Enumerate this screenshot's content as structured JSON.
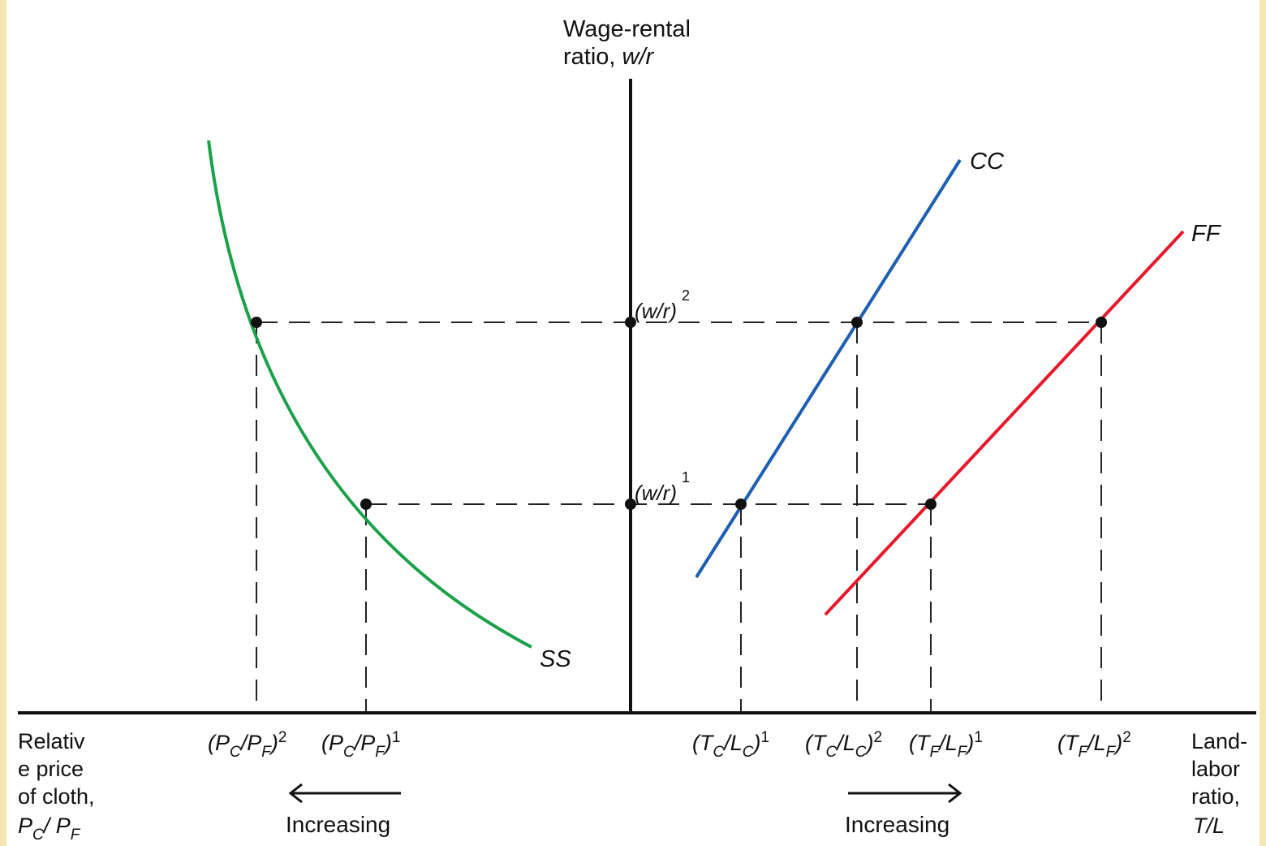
{
  "axis": {
    "y_label_line1": "Wage-rental",
    "y_label_line2_text": "ratio, ",
    "y_label_line2_var": "w/r",
    "left_label_lines": [
      "Relativ",
      "e price",
      "of cloth,"
    ],
    "left_label_var_P": "P",
    "left_label_var_C": "C",
    "left_label_slash": "/ ",
    "left_label_var_F": "F",
    "right_label_lines": [
      "Land-",
      "labor",
      "ratio,"
    ],
    "right_label_var": "T/L"
  },
  "curves": {
    "ss": {
      "label": "SS",
      "color": "#1aa14a"
    },
    "cc": {
      "label": "CC",
      "color": "#1e5fb3"
    },
    "ff": {
      "label": "FF",
      "color": "#e8192c"
    }
  },
  "wr_levels": {
    "level2": {
      "base": "(w/r)",
      "sup": "2"
    },
    "level1": {
      "base": "(w/r)",
      "sup": "1"
    }
  },
  "x_ticks_left": [
    {
      "P": "(P",
      "C": "C",
      "mid": "/P",
      "F": "F",
      "close": ")",
      "sup": "2"
    },
    {
      "P": "(P",
      "C": "C",
      "mid": "/P",
      "F": "F",
      "close": ")",
      "sup": "1"
    }
  ],
  "x_ticks_right": [
    {
      "open": "(T",
      "sub1": "C",
      "mid": "/L",
      "sub2": "C",
      "close": ")",
      "sup": "1"
    },
    {
      "open": "(T",
      "sub1": "C",
      "mid": "/L",
      "sub2": "C",
      "close": ")",
      "sup": "2"
    },
    {
      "open": "(T",
      "sub1": "F",
      "mid": "/L",
      "sub2": "F",
      "close": ")",
      "sup": "1"
    },
    {
      "open": "(T",
      "sub1": "F",
      "mid": "/L",
      "sub2": "F",
      "close": ")",
      "sup": "2"
    }
  ],
  "arrows": {
    "left_label": "Increasing",
    "right_label": "Increasing"
  },
  "colors": {
    "frame": "#f4e7b0",
    "axis": "#111111",
    "dash": "#222222"
  }
}
